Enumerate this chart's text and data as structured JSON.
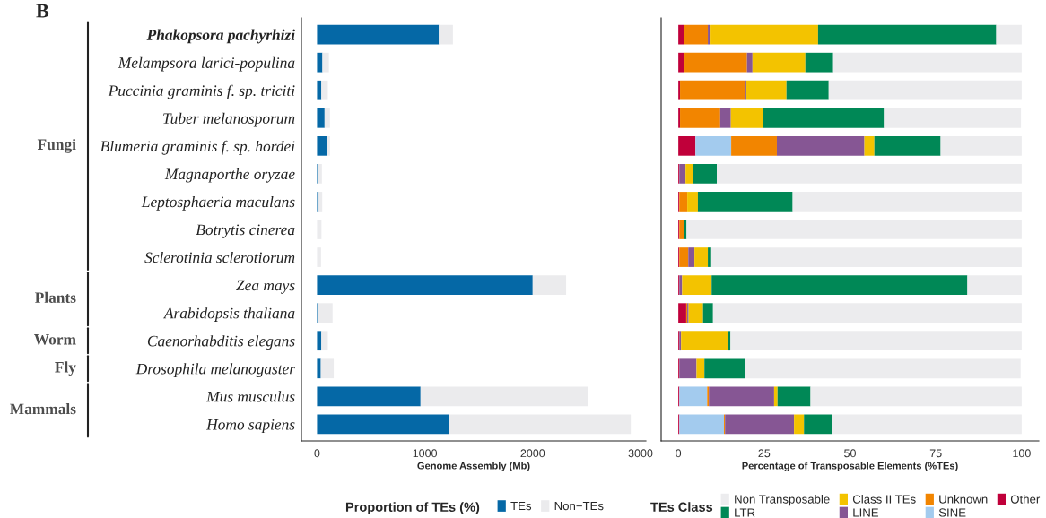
{
  "chart_data": [
    {
      "type": "bar",
      "orientation": "horizontal",
      "stacked": true,
      "categories": [
        "Phakopsora pachyrhizi",
        "Melampsora larici-populina",
        "Puccinia graminis f. sp. triciti",
        "Tuber melanosporum",
        "Blumeria graminis f. sp. hordei",
        "Magnaporthe oryzae",
        "Leptosphaeria maculans",
        "Botrytis cinerea",
        "Sclerotinia sclerotiorum",
        "Zea mays",
        "Arabidopsis thaliana",
        "Caenorhabditis elegans",
        "Drosophila melanogaster",
        "Mus musculus",
        "Homo sapiens"
      ],
      "series": [
        {
          "name": "TEs",
          "color": "#0568a6",
          "values": [
            1130,
            50,
            40,
            70,
            90,
            8,
            15,
            null,
            null,
            2000,
            14,
            40,
            35,
            960,
            1220
          ]
        },
        {
          "name": "Non−TEs",
          "color": "#ebebed",
          "values": [
            130,
            60,
            60,
            50,
            30,
            37,
            33,
            41,
            37,
            310,
            130,
            60,
            120,
            1550,
            1690
          ]
        }
      ],
      "xlim": [
        -145,
        3050
      ],
      "xticks": [
        0,
        1000,
        2000,
        3000
      ],
      "xlabel": "Genome Assembly (Mb)",
      "legend": "bottom",
      "legend_title": "Proportion of TEs (%)",
      "annotations": [
        "B",
        "Fungi",
        "Plants",
        "Worm",
        "Fly",
        "Mammals"
      ]
    },
    {
      "type": "bar",
      "orientation": "horizontal",
      "stacked": true,
      "tick_labels": "x",
      "categories": [
        null,
        null,
        null,
        null,
        null,
        null,
        null,
        null,
        null,
        null,
        null,
        null,
        null,
        null,
        null
      ],
      "series": [
        {
          "name": "Other",
          "color": "#c0003a",
          "values": [
            1.6,
            1.8,
            0.5,
            0.5,
            5.0,
            0.3,
            0.3,
            0.3,
            0.3,
            0.3,
            2.3,
            0.3,
            0.3,
            0.3,
            0.3
          ]
        },
        {
          "name": "SINE",
          "color": "#a3cbee",
          "values": [
            0,
            0,
            0,
            0,
            10.4,
            0,
            0,
            0,
            0,
            0,
            0,
            0,
            0,
            8.1,
            13.0
          ]
        },
        {
          "name": "Unknown",
          "color": "#f28500",
          "values": [
            7.0,
            18.2,
            18.8,
            11.7,
            13.3,
            0,
            2.3,
            1.3,
            2.6,
            0,
            0.3,
            0,
            0,
            0.5,
            0.3
          ]
        },
        {
          "name": "LINE",
          "color": "#865694",
          "values": [
            0.8,
            1.6,
            0.5,
            3.1,
            25.5,
            1.8,
            0,
            0,
            1.8,
            0.8,
            0.4,
            0.5,
            5.0,
            19.0,
            20.1
          ]
        },
        {
          "name": "Class II TEs",
          "color": "#f3c300",
          "values": [
            31.3,
            15.4,
            11.7,
            9.4,
            2.9,
            2.3,
            3.1,
            0,
            3.9,
            8.6,
            4.2,
            13.6,
            2.3,
            1.0,
            2.9
          ]
        },
        {
          "name": "LTR",
          "color": "#008856",
          "values": [
            51.9,
            8.1,
            12.3,
            35.2,
            19.3,
            6.8,
            27.6,
            0.8,
            1.0,
            74.5,
            2.9,
            0.8,
            11.7,
            9.6,
            8.3
          ]
        },
        {
          "name": "Non Transposable",
          "color": "#ececee",
          "values": [
            7.4,
            54.9,
            56.2,
            39.9,
            23.6,
            88.8,
            66.7,
            97.6,
            90.4,
            15.8,
            89.9,
            84.8,
            80.4,
            61.5,
            55.1
          ]
        }
      ],
      "xlim": [
        -5,
        105
      ],
      "xticks": [
        0,
        25,
        50,
        75,
        100
      ],
      "xlabel": "Percentage of Transposable Elements (%TEs)",
      "legend": "bottom",
      "legend_title": "TEs Class"
    }
  ]
}
